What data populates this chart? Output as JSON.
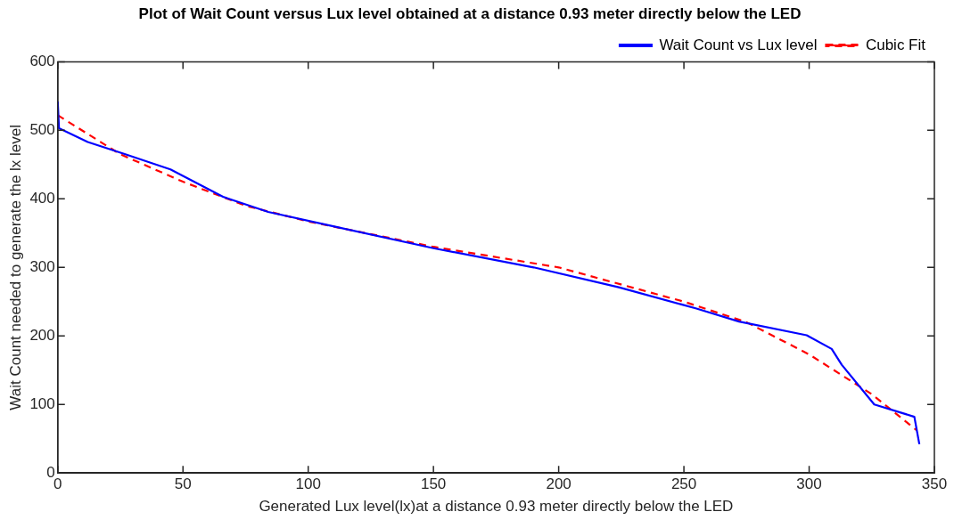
{
  "chart_data": {
    "type": "line",
    "title": "Plot of Wait Count versus Lux level obtained at a distance 0.93 meter directly below the LED",
    "xlabel": "Generated Lux level(lx)at a distance 0.93 meter directly below the LED",
    "ylabel": "Wait Count needed to generate the lx level",
    "xlim": [
      0,
      350
    ],
    "ylim": [
      0,
      600
    ],
    "xticks": [
      0,
      50,
      100,
      150,
      200,
      250,
      300,
      350
    ],
    "yticks": [
      0,
      100,
      200,
      300,
      400,
      500,
      600
    ],
    "grid": false,
    "legend": "top right",
    "marker": "none",
    "series": [
      {
        "name": "Wait Count vs Lux level",
        "color": "#0000ff",
        "line_style": "solid",
        "x": [
          0,
          0.5,
          12,
          27,
          45,
          66,
          84,
          110,
          150,
          190,
          224,
          255,
          272,
          299,
          309,
          313,
          326,
          342,
          344
        ],
        "values": [
          542,
          503,
          483,
          465,
          443,
          403,
          381,
          360,
          328,
          300,
          271,
          240,
          221,
          201,
          181,
          158,
          100,
          82,
          42
        ]
      },
      {
        "name": "Cubic Fit",
        "color": "#ff0000",
        "line_style": "dashed",
        "x": [
          0,
          25,
          50,
          75,
          100,
          150,
          200,
          250,
          275,
          300,
          325,
          343
        ],
        "values": [
          522,
          465,
          425,
          390,
          367,
          330,
          300,
          250,
          220,
          173,
          115,
          62
        ]
      }
    ]
  }
}
